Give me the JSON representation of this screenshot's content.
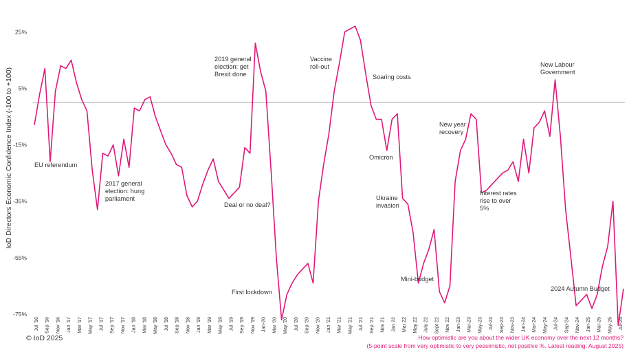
{
  "chart_data": {
    "type": "line",
    "ylabel": "IoD Directors Economic Confidence Index (-100 to +100)",
    "ylim": [
      -75,
      28
    ],
    "yticks": [
      "25%",
      "5%",
      "-15%",
      "-35%",
      "-55%",
      "-75%"
    ],
    "ytick_values": [
      25,
      5,
      -15,
      -35,
      -55,
      -75
    ],
    "x_tick_labels": [
      "Jul '16",
      "Sep '16",
      "Nov '16",
      "Jan '17",
      "Mar '17",
      "May '17",
      "Jul '17",
      "Sep '17",
      "Nov '17",
      "Jan '18",
      "Mar '18",
      "May '18",
      "Jul '18",
      "Sep '18",
      "Nov '18",
      "Jan '19",
      "Mar '19",
      "May '19",
      "Jul '19",
      "Sep '19",
      "Nov '19",
      "Jan-20",
      "Mar '20",
      "May '20",
      "Jul '20",
      "Sep '20",
      "Nov '20",
      "Jan '21",
      "Mar '21",
      "May '21",
      "Jul '21",
      "Sep '21",
      "Nov 21",
      "Jan 22",
      "Mar 22",
      "May 22",
      "July 22",
      "Sept 22",
      "Nov 22",
      "Jan-23",
      "Mar-23",
      "May-23",
      "Jul-23",
      "Sep-23",
      "Nov-23",
      "Jan-24",
      "Mar-24",
      "May-24",
      "Jul-24",
      "Sep-24",
      "Nov-24",
      "Jan-25",
      "Mar-25",
      "May-25",
      "Jul-25"
    ],
    "reference_line": 0,
    "line_color": "#e0187a",
    "series": [
      {
        "values": [
          -8,
          3,
          12,
          -21,
          4,
          13,
          12,
          15,
          7,
          1,
          -3,
          -24,
          -38,
          -18,
          -19,
          -15,
          -26,
          -13,
          -23,
          -2,
          -3,
          1,
          2,
          -5,
          -10,
          -15,
          -18,
          -22,
          -23,
          -33,
          -37,
          -35,
          -29,
          -24,
          -20,
          -28,
          -31,
          -34,
          -32,
          -30,
          -16,
          -18,
          21,
          11,
          4,
          -24,
          -55,
          -77,
          -68,
          -64,
          -61,
          -59,
          -57,
          -64,
          -35,
          -22,
          -11,
          4,
          14,
          25,
          26,
          27,
          22,
          10,
          -1,
          -6,
          -6,
          -17,
          -6,
          -4,
          -34,
          -36,
          -46,
          -64,
          -57,
          -52,
          -45,
          -67,
          -71,
          -65,
          -28,
          -17,
          -13,
          -4,
          -6,
          -32,
          -31,
          -29,
          -27,
          -25,
          -24,
          -21,
          -28,
          -13,
          -25,
          -9,
          -7,
          -3,
          -12,
          8,
          -12,
          -38,
          -55,
          -72,
          -70,
          -68,
          -73,
          -68,
          -58,
          -51,
          -35,
          -79,
          -66
        ]
      }
    ],
    "annotations": [
      "EU referendum",
      "2017 general election: hung parliament",
      "2019 general election: get Brexit done",
      "Deal or no deal?",
      "First lockdown",
      "Vaccine roll-out",
      "Soaring costs",
      "Omicron",
      "Ukraine invasion",
      "Mini-budget",
      "New year recovery",
      "Interest rates rise to over 5%",
      "New Labour Government",
      "2024 Autumn Budget"
    ]
  },
  "footer": {
    "copyright": "© IoD 2025",
    "question": "How optimistic are you about the wider UK economy over the next 12 months?",
    "note": "(5-point scale from very optimistic to very pessimistic, net positive %. Latest reading: August 2025)"
  }
}
